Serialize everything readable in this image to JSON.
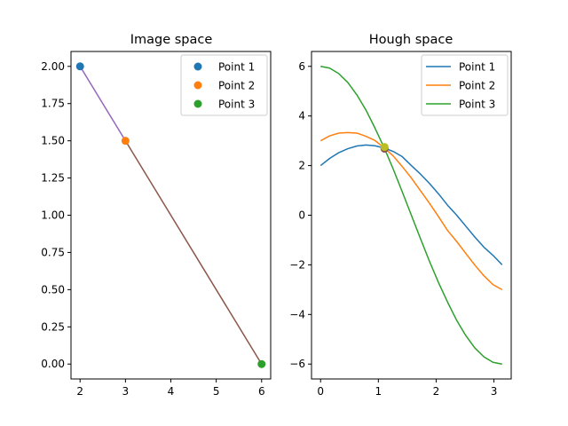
{
  "colors": {
    "c0": "#1f77b4",
    "c1": "#ff7f0e",
    "c2": "#2ca02c",
    "purple": "#9467bd",
    "brown": "#8c564b",
    "olive": "#bcbd22"
  },
  "chart_data": [
    {
      "type": "scatter",
      "title": "Image space",
      "xlim": [
        1.8,
        6.2
      ],
      "ylim": [
        -0.1,
        2.1
      ],
      "xticks": [
        2,
        3,
        4,
        5,
        6
      ],
      "yticks": [
        0.0,
        0.25,
        0.5,
        0.75,
        1.0,
        1.25,
        1.5,
        1.75,
        2.0
      ],
      "xtick_labels": [
        "2",
        "3",
        "4",
        "5",
        "6"
      ],
      "ytick_labels": [
        "0.00",
        "0.25",
        "0.50",
        "0.75",
        "1.00",
        "1.25",
        "1.50",
        "1.75",
        "2.00"
      ],
      "legend_position": "top-right",
      "series": [
        {
          "name": "Point 1",
          "color": "#1f77b4",
          "x": [
            2
          ],
          "y": [
            2
          ]
        },
        {
          "name": "Point 2",
          "color": "#ff7f0e",
          "x": [
            3
          ],
          "y": [
            1.5
          ]
        },
        {
          "name": "Point 3",
          "color": "#2ca02c",
          "x": [
            6
          ],
          "y": [
            0
          ]
        }
      ],
      "lines": [
        {
          "color": "#9467bd",
          "x": [
            2,
            3
          ],
          "y": [
            2,
            1.5
          ]
        },
        {
          "color": "#8c564b",
          "x": [
            3,
            6
          ],
          "y": [
            1.5,
            0
          ]
        }
      ]
    },
    {
      "type": "line",
      "title": "Hough space",
      "xlim": [
        -0.157,
        3.299
      ],
      "ylim": [
        -6.6,
        6.6
      ],
      "xticks": [
        0,
        1,
        2,
        3
      ],
      "yticks": [
        -6,
        -4,
        -2,
        0,
        2,
        4,
        6
      ],
      "xtick_labels": [
        "0",
        "1",
        "2",
        "3"
      ],
      "ytick_labels": [
        "−6",
        "−4",
        "−2",
        "0",
        "2",
        "4",
        "6"
      ],
      "legend_position": "top-right",
      "x": [
        0,
        0.157,
        0.314,
        0.471,
        0.628,
        0.785,
        0.942,
        1.1,
        1.257,
        1.414,
        1.571,
        1.728,
        1.885,
        2.042,
        2.199,
        2.356,
        2.513,
        2.67,
        2.827,
        2.985,
        3.142
      ],
      "series": [
        {
          "name": "Point 1",
          "color": "#1f77b4",
          "values": [
            2.0,
            2.29,
            2.52,
            2.68,
            2.79,
            2.83,
            2.8,
            2.71,
            2.57,
            2.36,
            2.0,
            1.66,
            1.28,
            0.86,
            0.4,
            0.0,
            -0.44,
            -0.88,
            -1.29,
            -1.62,
            -2.0
          ]
        },
        {
          "name": "Point 2",
          "color": "#ff7f0e",
          "values": [
            3.0,
            3.2,
            3.31,
            3.33,
            3.31,
            3.18,
            3.01,
            2.72,
            2.39,
            1.96,
            1.5,
            0.99,
            0.48,
            -0.06,
            -0.62,
            -1.06,
            -1.54,
            -2.01,
            -2.44,
            -2.8,
            -3.0
          ]
        },
        {
          "name": "Point 3",
          "color": "#2ca02c",
          "values": [
            6.0,
            5.93,
            5.71,
            5.35,
            4.85,
            4.24,
            3.51,
            2.72,
            1.86,
            0.94,
            0.0,
            -0.94,
            -1.86,
            -2.72,
            -3.51,
            -4.24,
            -4.85,
            -5.35,
            -5.71,
            -5.93,
            -6.0
          ]
        }
      ],
      "intersections": [
        {
          "x": 1.107,
          "y": 2.683,
          "color": "#9467bd"
        },
        {
          "x": 1.107,
          "y": 2.683,
          "color": "#8c564b"
        },
        {
          "x": 1.107,
          "y": 2.75,
          "color": "#bcbd22"
        }
      ]
    }
  ]
}
